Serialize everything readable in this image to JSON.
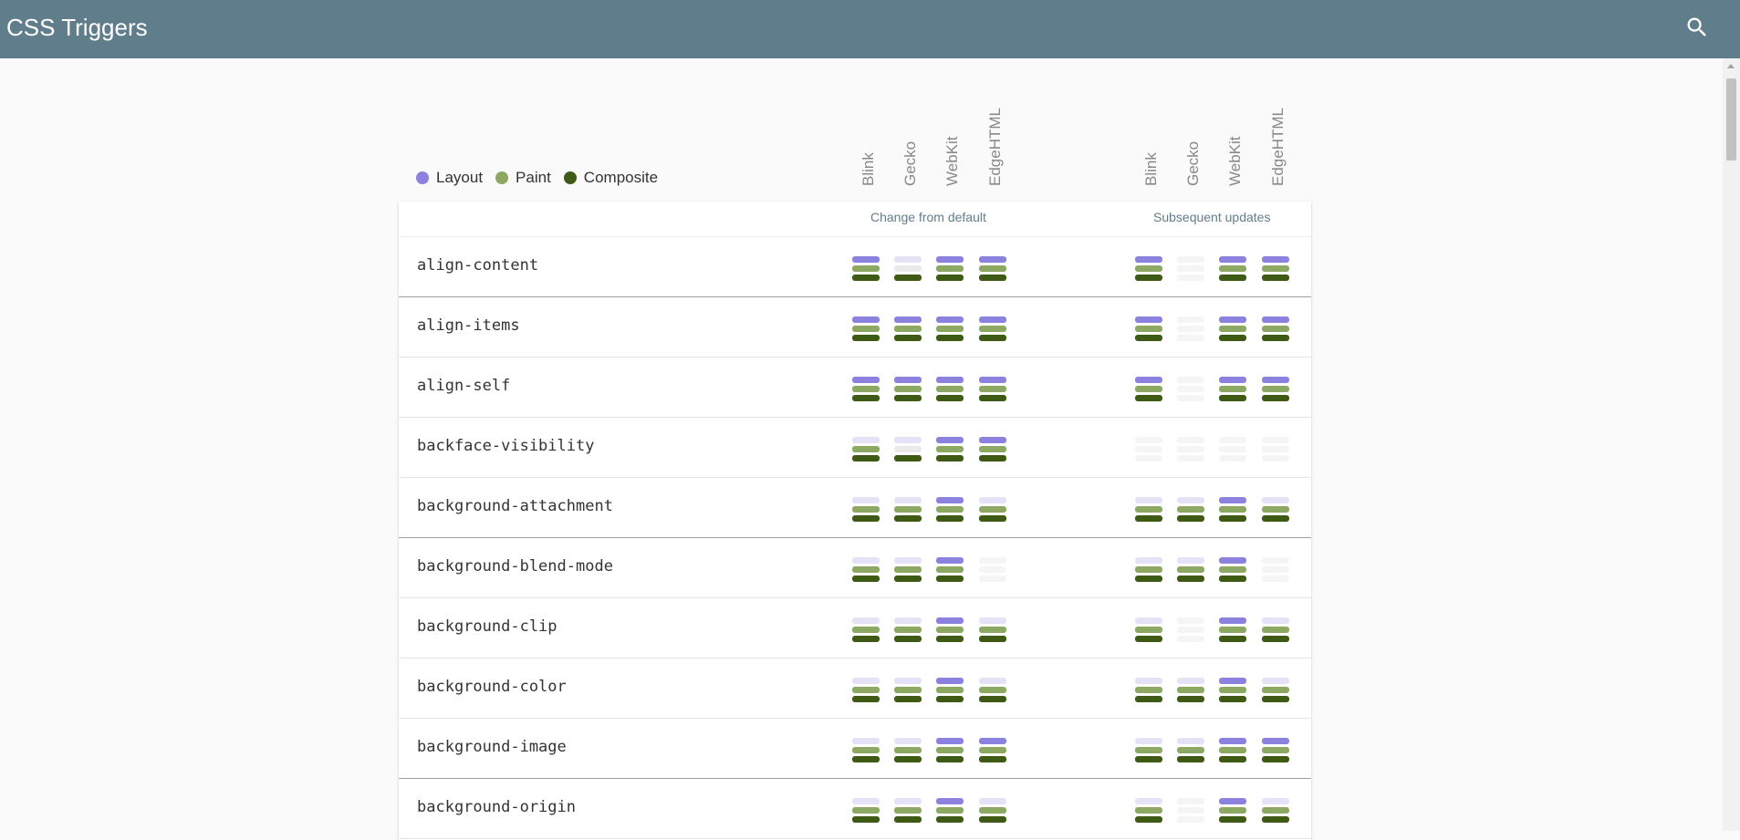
{
  "app": {
    "title": "CSS Triggers",
    "search_icon": "search-icon"
  },
  "colors": {
    "layout": "#8b82e0",
    "layout_faint": "#e5e2f8",
    "paint": "#8ca862",
    "paint_faint": "#eaeaea",
    "composite": "#3f5a14",
    "composite_faint": "#f2f2f2",
    "faint": "#f5f5f5"
  },
  "legend": [
    {
      "label": "Layout",
      "color": "#8b82e0"
    },
    {
      "label": "Paint",
      "color": "#8ca862"
    },
    {
      "label": "Composite",
      "color": "#3f5a14"
    }
  ],
  "engines": [
    "Blink",
    "Gecko",
    "WebKit",
    "EdgeHTML"
  ],
  "groups": [
    "Change from default",
    "Subsequent updates"
  ],
  "rows": [
    {
      "name": "align-content",
      "change": [
        "LPC",
        "--C",
        "LPC",
        "LPC"
      ],
      "update": [
        "LPC",
        "---",
        "LPC",
        "LPC"
      ]
    },
    {
      "name": "align-items",
      "change": [
        "LPC",
        "LPC",
        "LPC",
        "LPC"
      ],
      "update": [
        "LPC",
        "---",
        "LPC",
        "LPC"
      ]
    },
    {
      "name": "align-self",
      "change": [
        "LPC",
        "LPC",
        "LPC",
        "LPC"
      ],
      "update": [
        "LPC",
        "---",
        "LPC",
        "LPC"
      ]
    },
    {
      "name": "backface-visibility",
      "change": [
        "-PC",
        "--C",
        "LPC",
        "LPC"
      ],
      "update": [
        "---",
        "---",
        "---",
        "---"
      ]
    },
    {
      "name": "background-attachment",
      "change": [
        "-PC",
        "-PC",
        "LPC",
        "-PC"
      ],
      "update": [
        "-PC",
        "-PC",
        "LPC",
        "-PC"
      ]
    },
    {
      "name": "background-blend-mode",
      "change": [
        "-PC",
        "-PC",
        "LPC",
        "---"
      ],
      "update": [
        "-PC",
        "-PC",
        "LPC",
        "---"
      ]
    },
    {
      "name": "background-clip",
      "change": [
        "-PC",
        "-PC",
        "LPC",
        "-PC"
      ],
      "update": [
        "-PC",
        "---",
        "LPC",
        "-PC"
      ]
    },
    {
      "name": "background-color",
      "change": [
        "-PC",
        "-PC",
        "LPC",
        "-PC"
      ],
      "update": [
        "-PC",
        "-PC",
        "LPC",
        "-PC"
      ]
    },
    {
      "name": "background-image",
      "change": [
        "-PC",
        "-PC",
        "LPC",
        "LPC"
      ],
      "update": [
        "-PC",
        "-PC",
        "LPC",
        "LPC"
      ]
    },
    {
      "name": "background-origin",
      "change": [
        "-PC",
        "-PC",
        "LPC",
        "-PC"
      ],
      "update": [
        "-PC",
        "---",
        "LPC",
        "-PC"
      ]
    }
  ]
}
